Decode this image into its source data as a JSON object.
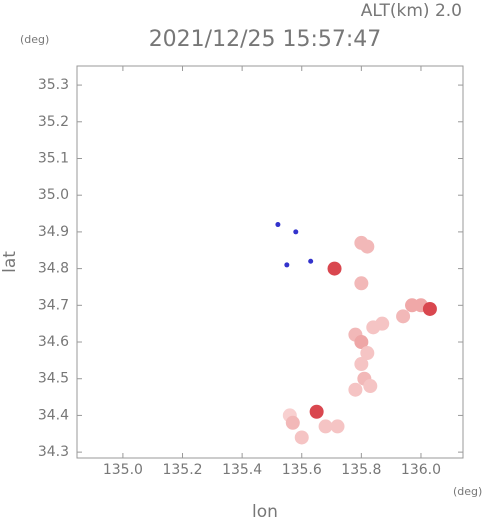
{
  "chart_data": {
    "type": "scatter",
    "title": "2021/12/25 15:57:47",
    "subtitle": "ALT(km) 2.0",
    "y_unit": "(deg)",
    "x_unit": "(deg)",
    "ylabel": "lat",
    "xlabel": "lon",
    "xlim": [
      134.846,
      136.141
    ],
    "ylim": [
      34.284,
      35.352
    ],
    "xticks": [
      {
        "value": 135,
        "label": "135.0"
      },
      135.2,
      135.4,
      135.6,
      135.8,
      {
        "value": 136,
        "label": "136.0"
      }
    ],
    "yticks": [
      34.3,
      34.4,
      34.5,
      34.6,
      34.7,
      34.8,
      34.9,
      {
        "value": 35,
        "label": "35.0"
      },
      35.1,
      35.2,
      35.3
    ],
    "x": [
      135.52,
      135.58,
      135.55,
      135.63,
      135.71,
      135.8,
      135.82,
      135.8,
      135.97,
      136.0,
      136.03,
      135.94,
      135.84,
      135.87,
      135.78,
      135.8,
      135.82,
      135.8,
      135.81,
      135.83,
      135.78,
      135.56,
      135.57,
      135.6,
      135.65,
      135.68,
      135.72
    ],
    "values": [
      34.92,
      34.9,
      34.81,
      34.82,
      34.8,
      34.87,
      34.86,
      34.76,
      34.7,
      34.7,
      34.69,
      34.67,
      34.64,
      34.65,
      34.62,
      34.6,
      34.57,
      34.54,
      34.5,
      34.48,
      34.47,
      34.4,
      34.38,
      34.34,
      34.41,
      34.37,
      34.37
    ],
    "colors": [
      "#3333cc",
      "#3333cc",
      "#3333cc",
      "#3333cc",
      "#d9474f",
      "#f2b8b8",
      "#f2b8b8",
      "#f2b8b8",
      "#f0a8a8",
      "#f0a8a8",
      "#d9474f",
      "#f2b8b8",
      "#f5c4c4",
      "#f5c4c4",
      "#f2b8b8",
      "#eea6a6",
      "#f5c4c4",
      "#f5c4c4",
      "#f2b8b8",
      "#f5c4c4",
      "#f5c4c4",
      "#f8d0d0",
      "#f2b8b8",
      "#f5c4c4",
      "#d9474f",
      "#f5c4c4",
      "#f5c4c4"
    ]
  }
}
